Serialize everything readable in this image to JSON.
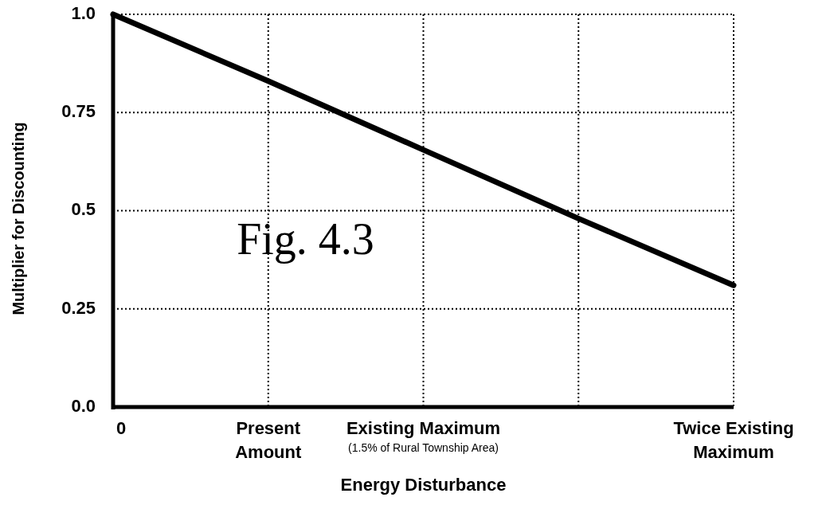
{
  "chart_data": {
    "type": "line",
    "xlabel": "Energy Disturbance",
    "ylabel": "Multiplier for Discounting",
    "categories": [
      "0",
      "Present\nAmount",
      "Existing Maximum\n$_{(1.5% of Rural Township Area)}$",
      null,
      "Twice Existing\nMaximum"
    ],
    "series": [
      {
        "color": "#000000",
        "values": [
          1.0,
          0.83,
          0.655,
          0.48,
          0.31
        ]
      }
    ],
    "ylim": [
      0,
      1.0
    ],
    "yticks": [
      {
        "value": 0,
        "label": "0.0"
      },
      0.25,
      0.5,
      0.75,
      {
        "value": 1,
        "label": "1.0"
      }
    ],
    "grid": true,
    "marker": "none",
    "line_style": "solid",
    "annotations": [
      "Fig. 4.3"
    ]
  }
}
